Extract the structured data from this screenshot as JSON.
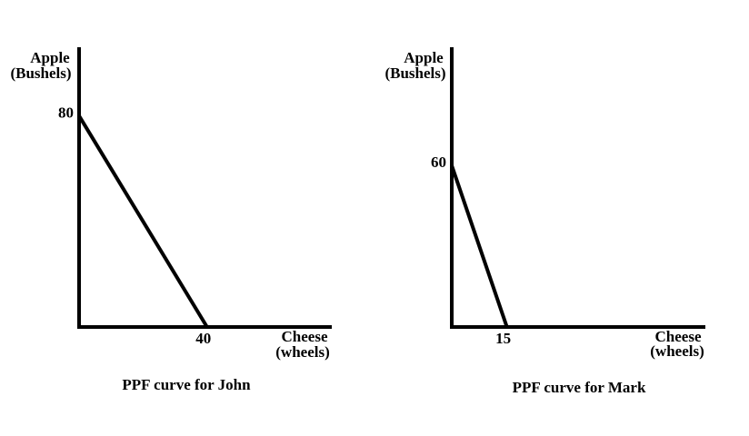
{
  "chart_data": [
    {
      "type": "line",
      "title": "PPF curve for John",
      "y_label": [
        "Apple",
        "(Bushels)"
      ],
      "x_label": [
        "Cheese",
        "(wheels)"
      ],
      "x": [
        0,
        40
      ],
      "values": [
        80,
        0
      ],
      "color": "#000000",
      "xlim": [
        0,
        79
      ],
      "ylim": [
        0,
        106
      ],
      "xticks": [
        40
      ],
      "yticks": [
        80
      ]
    },
    {
      "type": "line",
      "title": "PPF curve for Mark",
      "y_label": [
        "Apple",
        "(Bushels)"
      ],
      "x_label": [
        "Cheese",
        "(wheels)"
      ],
      "x": [
        0,
        15
      ],
      "values": [
        60,
        0
      ],
      "color": "#000000",
      "xlim": [
        0,
        69
      ],
      "ylim": [
        0,
        104
      ],
      "xticks": [
        15
      ],
      "yticks": [
        60
      ]
    }
  ]
}
